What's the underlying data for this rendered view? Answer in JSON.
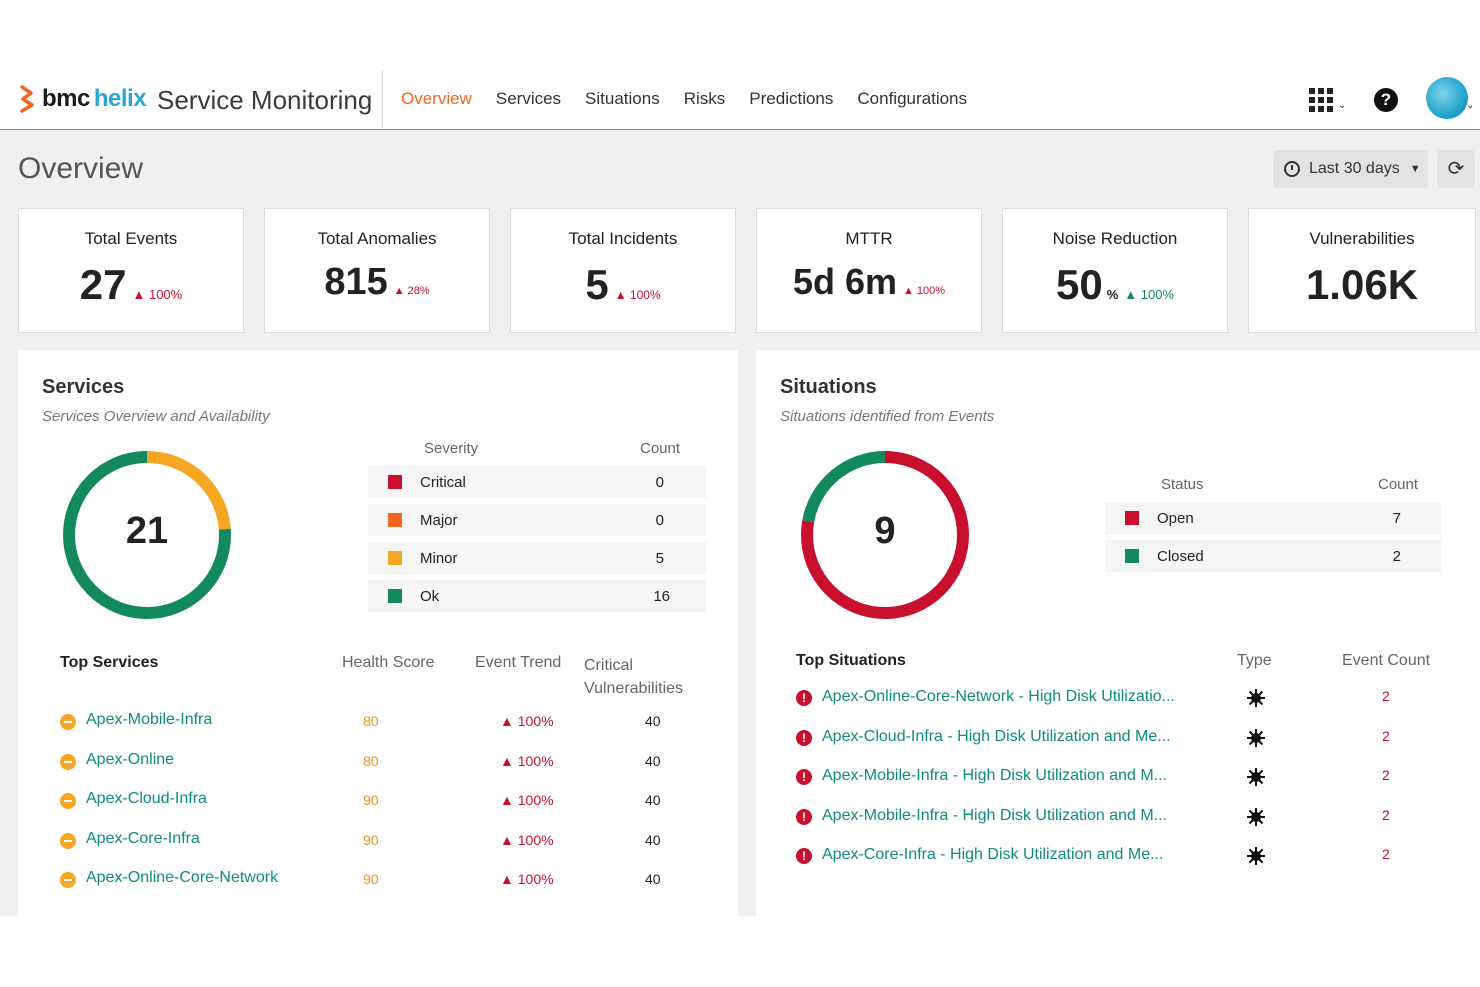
{
  "brand": {
    "bmc": "bmc",
    "helix": "helix",
    "app_title": "Service Monitoring"
  },
  "nav": [
    {
      "label": "Overview",
      "active": true
    },
    {
      "label": "Services"
    },
    {
      "label": "Situations"
    },
    {
      "label": "Risks"
    },
    {
      "label": "Predictions"
    },
    {
      "label": "Configurations"
    }
  ],
  "header_icons": [
    "apps-grid-icon",
    "help-icon",
    "user-avatar"
  ],
  "page": {
    "title": "Overview",
    "time_range": "Last 30 days",
    "refresh_icon": "refresh-icon"
  },
  "kpis": [
    {
      "label": "Total Events",
      "value": "27",
      "unit": "",
      "trend": "▲ 100%",
      "trend_color": "#c8102e"
    },
    {
      "label": "Total Anomalies",
      "value": "815",
      "unit": "",
      "trend": "▲ 28%",
      "trend_color": "#c8102e"
    },
    {
      "label": "Total Incidents",
      "value": "5",
      "unit": "",
      "trend": "▲ 100%",
      "trend_color": "#c8102e"
    },
    {
      "label": "MTTR",
      "value": "5d 6m",
      "unit": "",
      "trend": "▲ 100%",
      "trend_color": "#c8102e"
    },
    {
      "label": "Noise Reduction",
      "value": "50",
      "unit": "%",
      "trend": "▲ 100%",
      "trend_color": "#138a5e"
    },
    {
      "label": "Vulnerabilities",
      "value": "1.06K",
      "unit": "",
      "trend": "",
      "trend_color": "#c8102e"
    }
  ],
  "services": {
    "title": "Services",
    "subtitle": "Services Overview and Availability",
    "total": "21",
    "legend_headers": {
      "severity": "Severity",
      "count": "Count"
    },
    "severity": [
      {
        "label": "Critical",
        "count": 0,
        "color": "#c8102e"
      },
      {
        "label": "Major",
        "count": 0,
        "color": "#f26522"
      },
      {
        "label": "Minor",
        "count": 5,
        "color": "#f5a623"
      },
      {
        "label": "Ok",
        "count": 16,
        "color": "#138a5e"
      }
    ],
    "top_headers": {
      "name": "Top Services",
      "health": "Health Score",
      "trend": "Event Trend",
      "vuln": "Critical Vulnerabilities"
    },
    "top": [
      {
        "name": "Apex-Mobile-Infra",
        "score": "80",
        "trend": "▲ 100%",
        "vuln": "40"
      },
      {
        "name": "Apex-Online",
        "score": "80",
        "trend": "▲ 100%",
        "vuln": "40"
      },
      {
        "name": "Apex-Cloud-Infra",
        "score": "90",
        "trend": "▲ 100%",
        "vuln": "40"
      },
      {
        "name": "Apex-Core-Infra",
        "score": "90",
        "trend": "▲ 100%",
        "vuln": "40"
      },
      {
        "name": "Apex-Online-Core-Network",
        "score": "90",
        "trend": "▲ 100%",
        "vuln": "40"
      }
    ]
  },
  "situations": {
    "title": "Situations",
    "subtitle": "Situations identified from Events",
    "total": "9",
    "legend_headers": {
      "status": "Status",
      "count": "Count"
    },
    "status": [
      {
        "label": "Open",
        "count": 7,
        "color": "#c8102e"
      },
      {
        "label": "Closed",
        "count": 2,
        "color": "#138a5e"
      }
    ],
    "top_headers": {
      "name": "Top Situations",
      "type": "Type",
      "count": "Event Count"
    },
    "top": [
      {
        "name": "Apex-Online-Core-Network - High Disk Utilizatio...",
        "count": "2",
        "type_icon": "anomaly-icon"
      },
      {
        "name": "Apex-Cloud-Infra - High Disk Utilization and Me...",
        "count": "2",
        "type_icon": "anomaly-icon"
      },
      {
        "name": "Apex-Mobile-Infra - High Disk Utilization and M...",
        "count": "2",
        "type_icon": "anomaly-icon"
      },
      {
        "name": "Apex-Mobile-Infra - High Disk Utilization and M...",
        "count": "2",
        "type_icon": "anomaly-icon"
      },
      {
        "name": "Apex-Core-Infra - High Disk Utilization and Me...",
        "count": "2",
        "type_icon": "anomaly-icon"
      }
    ]
  }
}
